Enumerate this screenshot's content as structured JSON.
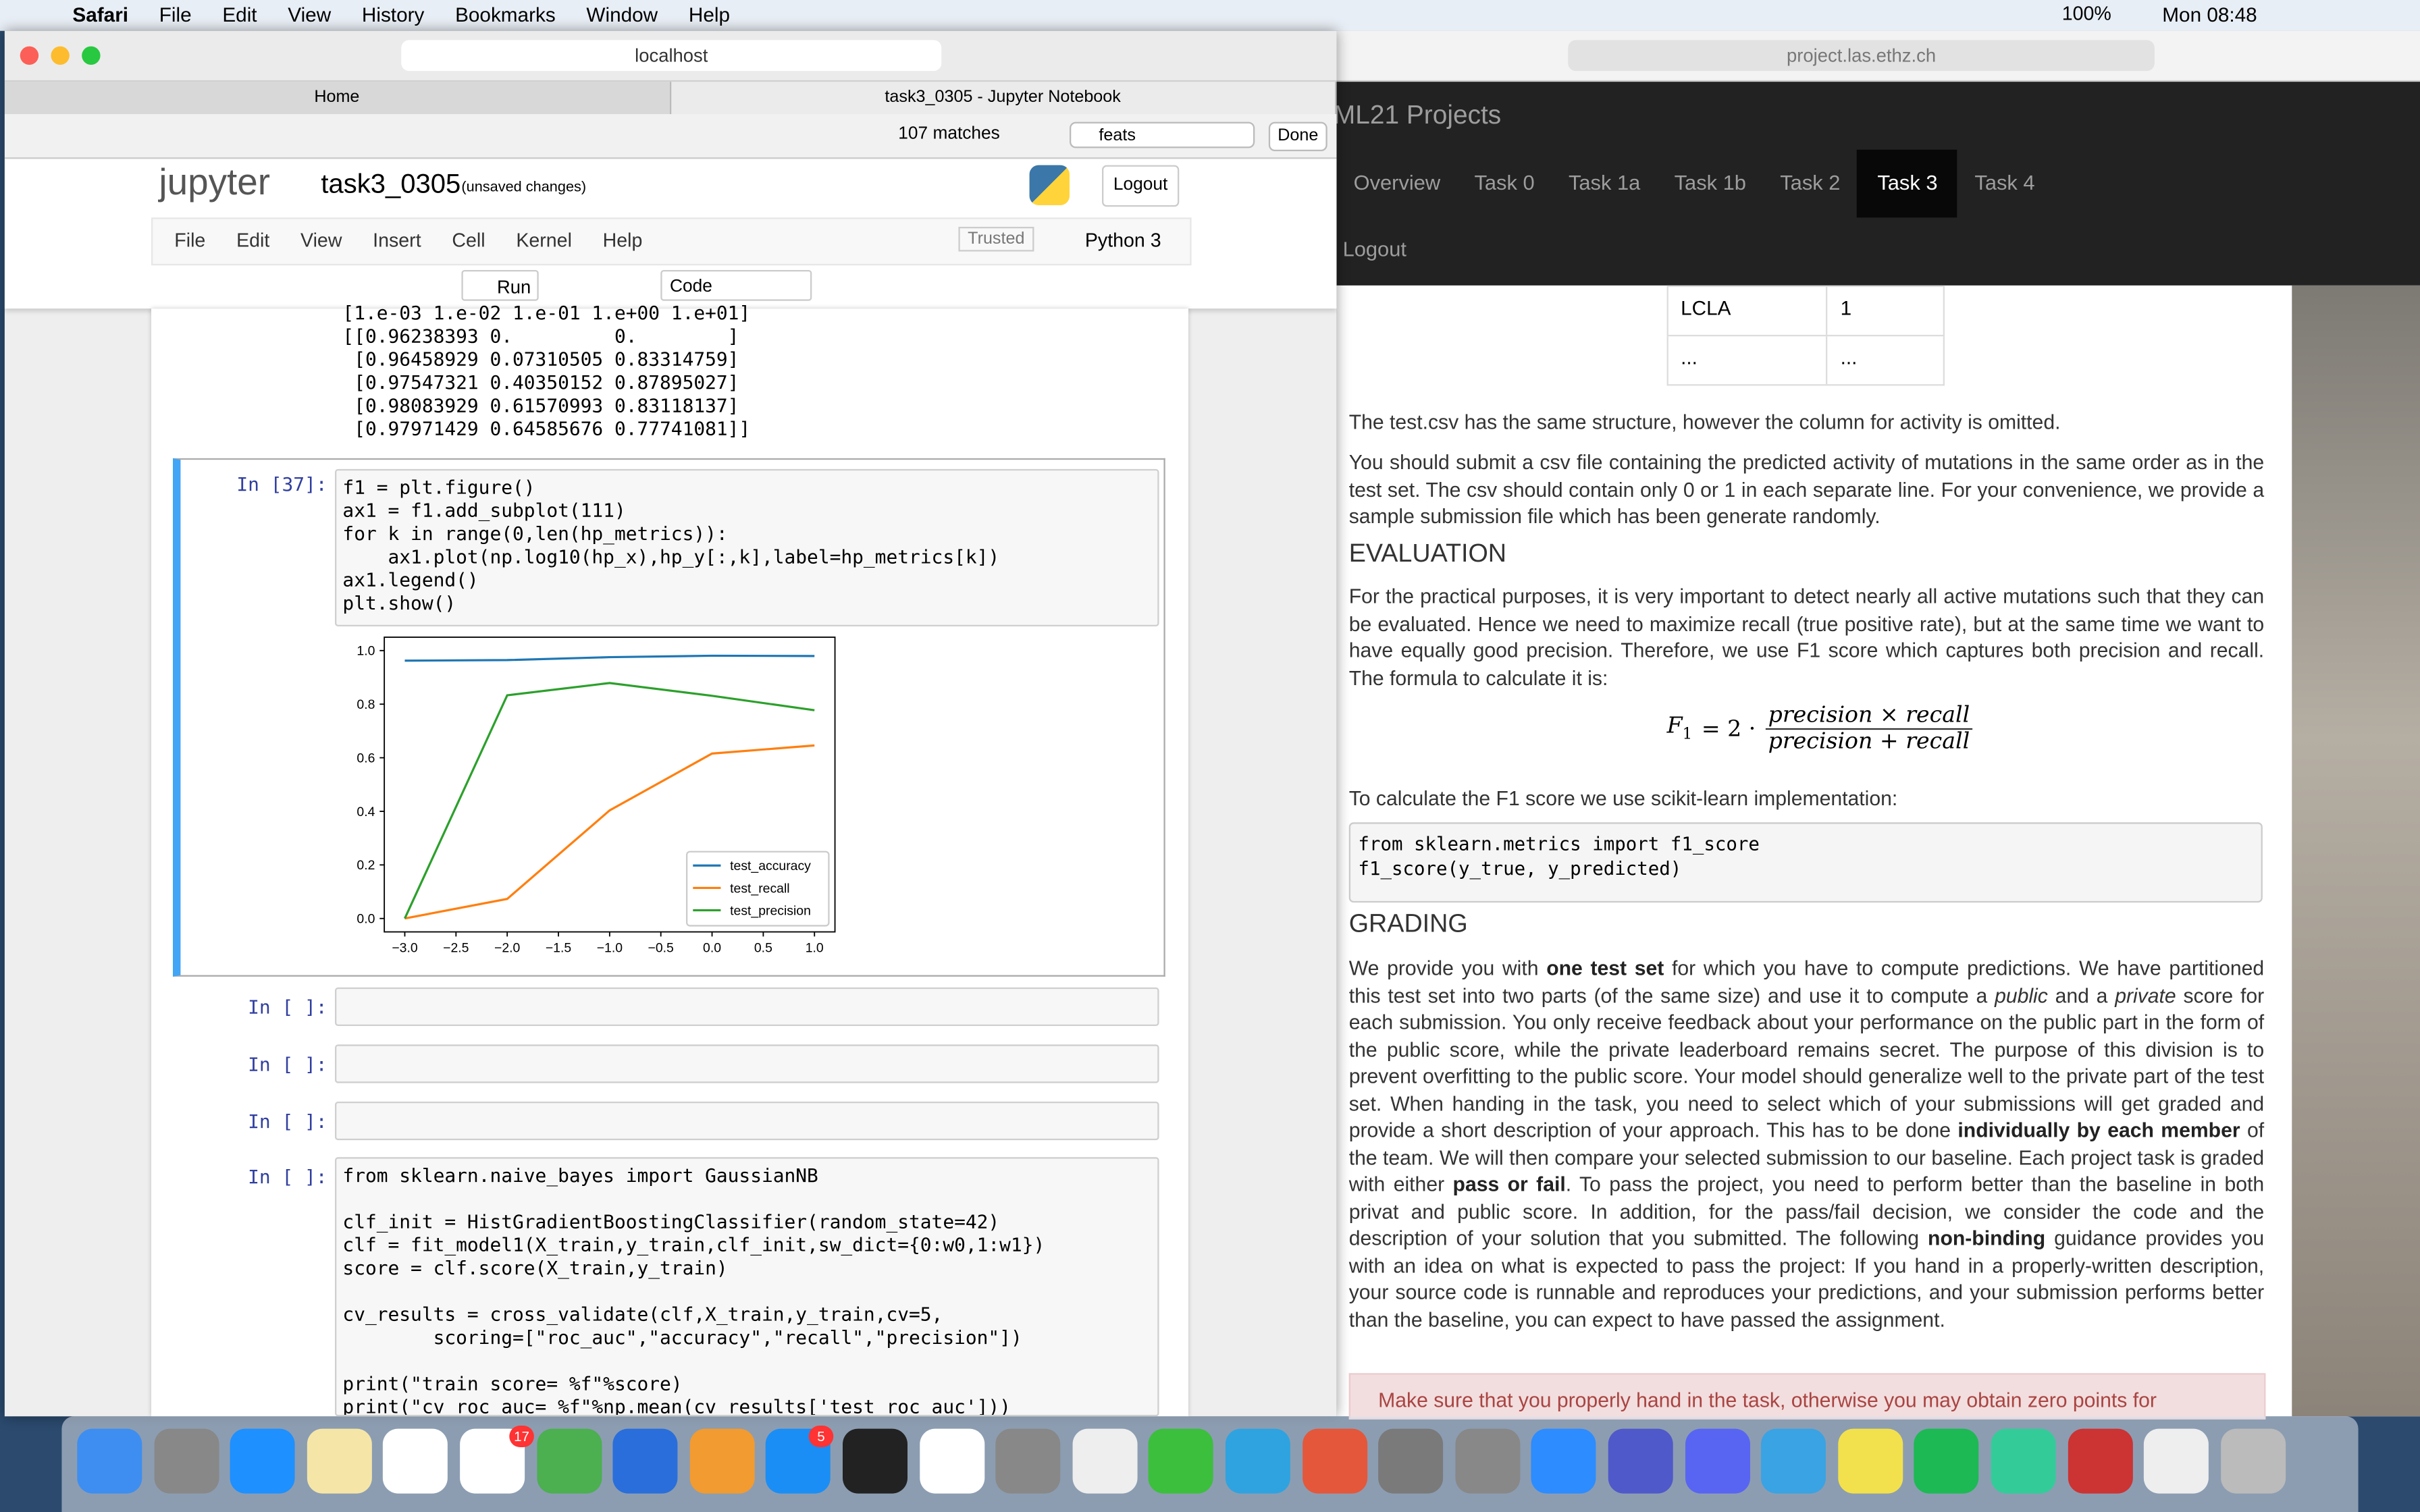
{
  "menubar": {
    "app": "Safari",
    "items": [
      "File",
      "Edit",
      "View",
      "History",
      "Bookmarks",
      "Window",
      "Help"
    ],
    "battery": "100%",
    "clock": "Mon 08:48"
  },
  "left_browser": {
    "address": "localhost",
    "tabs": [
      "Home",
      "task3_0305 - Jupyter Notebook"
    ],
    "find": {
      "matches": "107 matches",
      "query": "feats",
      "done": "Done"
    }
  },
  "jupyter": {
    "logo": "jupyter",
    "name": "task3_0305",
    "status": "(unsaved changes)",
    "logout": "Logout",
    "menu": [
      "File",
      "Edit",
      "View",
      "Insert",
      "Cell",
      "Kernel",
      "Help"
    ],
    "trusted": "Trusted",
    "kernel": "Python 3",
    "run": "Run",
    "cell_type": "Code"
  },
  "output_lines": [
    "[1.e-03 1.e-02 1.e-01 1.e+00 1.e+01]",
    "[[0.96238393 0.         0.        ]",
    " [0.96458929 0.07310505 0.83314759]",
    " [0.97547321 0.40350152 0.87895027]",
    " [0.98083929 0.61570993 0.83118137]",
    " [0.97971429 0.64585676 0.77741081]]"
  ],
  "cells": [
    {
      "prompt": "In [37]:",
      "blocks": [
        [
          "f1 = plt.figure()",
          "ax1 = f1.add_subplot(111)",
          "for k in range(0,len(hp_metrics)):",
          "    ax1.plot(np.log10(hp_x),hp_y[:,k],label=hp_metrics[k])",
          "ax1.legend()",
          "plt.show()"
        ]
      ]
    },
    {
      "prompt": "In [ ]:",
      "blocks": []
    },
    {
      "prompt": "In [ ]:",
      "blocks": []
    },
    {
      "prompt": "In [ ]:",
      "blocks": []
    },
    {
      "prompt": "In [ ]:",
      "blocks": [
        [
          "from sklearn.naive_bayes import GaussianNB"
        ],
        [
          "clf_init = HistGradientBoostingClassifier(random_state=42)",
          "clf = fit_model1(X_train,y_train,clf_init,sw_dict={0:w0,1:w1})",
          "score = clf.score(X_train,y_train)"
        ],
        [
          "cv_results = cross_validate(clf,X_train,y_train,cv=5,",
          "        scoring=[\"roc_auc\",\"accuracy\",\"recall\",\"precision\"])"
        ],
        [
          "print(\"train score= %f\"%score)",
          "print(\"cv roc_auc= %f\"%np.mean(cv_results['test_roc_auc']))"
        ]
      ]
    }
  ],
  "chart_data": {
    "type": "line",
    "x": [
      -3,
      -2,
      -1,
      0,
      1
    ],
    "series": [
      {
        "name": "test_accuracy",
        "color": "#1f77b4",
        "values": [
          0.96238393,
          0.96458929,
          0.97547321,
          0.98083929,
          0.97971429
        ]
      },
      {
        "name": "test_recall",
        "color": "#ff7f0e",
        "values": [
          0,
          0.07310505,
          0.40350152,
          0.61570993,
          0.64585676
        ]
      },
      {
        "name": "test_precision",
        "color": "#2ca02c",
        "values": [
          0,
          0.83314759,
          0.87895027,
          0.83118137,
          0.77741081
        ]
      }
    ],
    "xlim": [
      -3.2,
      1.2
    ],
    "ylim": [
      -0.05,
      1.05
    ],
    "xticks": [
      {
        "value": -3,
        "label": "−3.0"
      },
      {
        "value": -2.5,
        "label": "−2.5"
      },
      {
        "value": -2,
        "label": "−2.0"
      },
      {
        "value": -1.5,
        "label": "−1.5"
      },
      {
        "value": -1,
        "label": "−1.0"
      },
      {
        "value": -0.5,
        "label": "−0.5"
      },
      {
        "value": 0,
        "label": "0.0"
      },
      0.5,
      {
        "value": 1,
        "label": "1.0"
      }
    ],
    "yticks": [
      {
        "value": 0,
        "label": "0.0"
      },
      0.2,
      0.4,
      0.6,
      0.8,
      {
        "value": 1,
        "label": "1.0"
      }
    ],
    "legend": "lower right",
    "grid": false
  },
  "right_browser": {
    "address": "project.las.ethz.ch",
    "brand": "ML21 Projects",
    "nav": [
      "Overview",
      "Task 0",
      "Task 1a",
      "Task 1b",
      "Task 2",
      "Task 3",
      "Task 4"
    ],
    "active": 5,
    "logout": "Logout",
    "table": [
      [
        "LCLA",
        "1"
      ],
      [
        "...",
        "..."
      ]
    ],
    "p1": "The test.csv has the same structure, however the column for activity is omitted.",
    "p2": "You should submit a csv file containing the predicted activity of mutations in the same order as in the test set. The csv should contain only 0 or 1 in each separate line. For your convenience, we provide a sample submission file which has been generate randomly.",
    "h_eval": "EVALUATION",
    "p3": "For the practical purposes, it is very important to detect nearly all active mutations such that they can be evaluated. Hence we need to maximize recall (true positive rate), but at the same time we want to have equally good precision. Therefore, we use F1 score which captures both precision and recall. The formula to calculate it is:",
    "formula": {
      "lhs": "F",
      "sub": "1",
      "mid": "= 2 ·",
      "num": "precision × recall",
      "den": "precision + recall"
    },
    "p4": "To calculate the F1 score we use scikit-learn implementation:",
    "code": [
      "from sklearn.metrics import f1_score",
      "f1_score(y_true, y_predicted)"
    ],
    "h_grade": "GRADING",
    "p5": [
      {
        "text": "We provide you with "
      },
      {
        "text": "one test set",
        "style": "b"
      },
      {
        "text": " for which you have to compute predictions. We have partitioned this test set into two parts (of the same size) and use it to compute a "
      },
      {
        "text": "public",
        "style": "i"
      },
      {
        "text": " and a "
      },
      {
        "text": "private",
        "style": "i"
      },
      {
        "text": " score for each submission. You only receive feedback about your performance on the public part in the form of the public score, while the private leaderboard remains secret. The purpose of this division is to prevent overfitting to the public score. Your model should generalize well to the private part of the test set. When handing in the task, you need to select which of your submissions will get graded and provide a short description of your approach. This has to be done "
      },
      {
        "text": "individually by each member",
        "style": "b"
      },
      {
        "text": " of the team. We will then compare your selected submission to our baseline. Each project task is graded with either "
      },
      {
        "text": "pass or fail",
        "style": "b"
      },
      {
        "text": ". To pass the project, you need to perform better than the baseline in both privat and public score. In addition, for the pass/fail decision, we consider the code and the description of your solution that you submitted. The following "
      },
      {
        "text": "non-binding",
        "style": "b"
      },
      {
        "text": " guidance provides you with an idea on what is expected to pass the project: If you hand in a properly-written description, your source code is runnable and reproduces your predictions, and your submission performs better than the baseline, you can expect to have passed the assignment."
      }
    ],
    "alert": "Make sure that you properly hand in the task, otherwise you may obtain zero points for"
  },
  "dock": {
    "badges": [
      "17",
      "5"
    ]
  }
}
